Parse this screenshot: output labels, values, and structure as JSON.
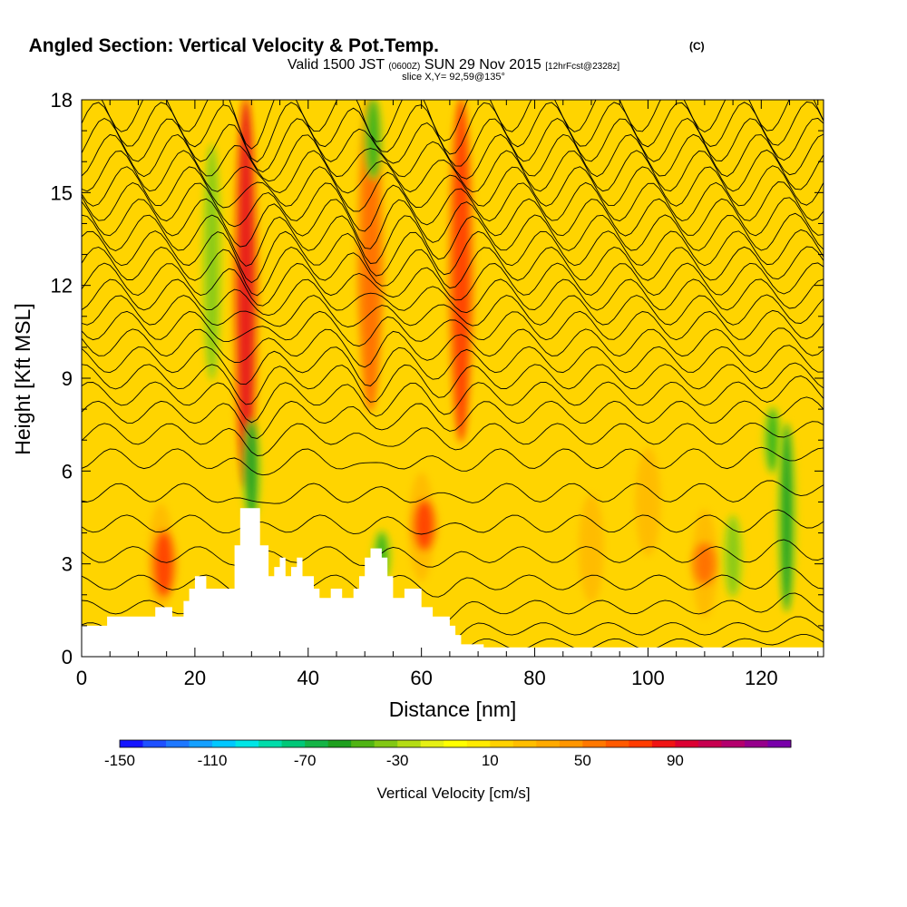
{
  "chart_data": {
    "type": "contour",
    "title": "Angled Section: Vertical Velocity & Pot.Temp.",
    "title_suffix": "(C)",
    "subtitle_parts": [
      "Valid 1500 JST",
      "(0600Z)",
      "SUN 29 Nov 2015",
      "[12hrFcst@2328z]"
    ],
    "slice_text": "slice X,Y= 92,59@135°",
    "xlabel": "Distance [nm]",
    "ylabel": "Height [Kft MSL]",
    "xlim": [
      0,
      131
    ],
    "ylim": [
      0,
      18
    ],
    "x_ticks": [
      "0",
      "20",
      "40",
      "60",
      "80",
      "100",
      "120"
    ],
    "y_ticks": [
      "0",
      "3",
      "6",
      "9",
      "12",
      "15",
      "18"
    ],
    "colorbar": {
      "label": "Vertical Velocity [cm/s]",
      "tick_labels": [
        "-150",
        "-110",
        "-70",
        "-30",
        "10",
        "50",
        "90"
      ],
      "colors": [
        "#1414ff",
        "#1e50ff",
        "#1e78ff",
        "#14a0ff",
        "#00c8ff",
        "#00e6e6",
        "#00dcaa",
        "#00c878",
        "#14b446",
        "#1ea01e",
        "#50b414",
        "#82c814",
        "#b4dc14",
        "#e6f014",
        "#ffff00",
        "#ffeb00",
        "#ffd200",
        "#ffbe00",
        "#ffaa00",
        "#ff9600",
        "#ff7800",
        "#ff5a00",
        "#ff3c00",
        "#f01414",
        "#dc0032",
        "#c80050",
        "#b4006e",
        "#96008c",
        "#7800aa"
      ]
    },
    "terrain_profile": [
      [
        0,
        1
      ],
      [
        4.5,
        1
      ],
      [
        4.5,
        1.3
      ],
      [
        13,
        1.3
      ],
      [
        13,
        1.6
      ],
      [
        16,
        1.6
      ],
      [
        16,
        1.3
      ],
      [
        18,
        1.3
      ],
      [
        18,
        1.8
      ],
      [
        19,
        1.8
      ],
      [
        19,
        2.2
      ],
      [
        20,
        2.2
      ],
      [
        20,
        2.6
      ],
      [
        22,
        2.6
      ],
      [
        22,
        2.2
      ],
      [
        27,
        2.2
      ],
      [
        27,
        3.6
      ],
      [
        28,
        3.6
      ],
      [
        28,
        4.8
      ],
      [
        31.5,
        4.8
      ],
      [
        31.5,
        3.6
      ],
      [
        33,
        3.6
      ],
      [
        33,
        2.6
      ],
      [
        34,
        2.6
      ],
      [
        34,
        2.9
      ],
      [
        35,
        2.9
      ],
      [
        35,
        3.2
      ],
      [
        36,
        3.2
      ],
      [
        36,
        2.6
      ],
      [
        37,
        2.6
      ],
      [
        37,
        2.9
      ],
      [
        38,
        2.9
      ],
      [
        38,
        3.2
      ],
      [
        39,
        3.2
      ],
      [
        39,
        2.6
      ],
      [
        41,
        2.6
      ],
      [
        41,
        2.2
      ],
      [
        42,
        2.2
      ],
      [
        42,
        1.9
      ],
      [
        44,
        1.9
      ],
      [
        44,
        2.2
      ],
      [
        46,
        2.2
      ],
      [
        46,
        1.9
      ],
      [
        48,
        1.9
      ],
      [
        48,
        2.2
      ],
      [
        49,
        2.2
      ],
      [
        49,
        2.6
      ],
      [
        50,
        2.6
      ],
      [
        50,
        3.2
      ],
      [
        51,
        3.2
      ],
      [
        51,
        3.5
      ],
      [
        53,
        3.5
      ],
      [
        53,
        3.2
      ],
      [
        54,
        3.2
      ],
      [
        54,
        2.6
      ],
      [
        55,
        2.6
      ],
      [
        55,
        1.9
      ],
      [
        57,
        1.9
      ],
      [
        57,
        2.2
      ],
      [
        60,
        2.2
      ],
      [
        60,
        1.6
      ],
      [
        62,
        1.6
      ],
      [
        62,
        1.3
      ],
      [
        65,
        1.3
      ],
      [
        65,
        1
      ],
      [
        66,
        1
      ],
      [
        66,
        0.7
      ],
      [
        67,
        0.7
      ],
      [
        67,
        0.4
      ],
      [
        71,
        0.4
      ],
      [
        71,
        0.3
      ],
      [
        131,
        0.3
      ]
    ],
    "vertical_velocity_features": [
      {
        "type": "updraft",
        "x": 29,
        "ytop": 18,
        "ybot": 5.5,
        "intensity": 90
      },
      {
        "type": "updraft",
        "x": 14.5,
        "ytop": 4,
        "ybot": 2,
        "intensity": 60
      },
      {
        "type": "updraft",
        "x": 51,
        "ytop": 18,
        "ybot": 8,
        "intensity": 50
      },
      {
        "type": "updraft",
        "x": 60.5,
        "ytop": 5,
        "ybot": 3.5,
        "intensity": 70
      },
      {
        "type": "updraft",
        "x": 67,
        "ytop": 18,
        "ybot": 7,
        "intensity": 75
      },
      {
        "type": "updraft",
        "x": 110,
        "ytop": 3.6,
        "ybot": 2.4,
        "intensity": 50
      },
      {
        "type": "downdraft",
        "x": 23,
        "ytop": 16.5,
        "ybot": 9,
        "intensity": -40
      },
      {
        "type": "downdraft",
        "x": 30,
        "ytop": 7.6,
        "ybot": 4.4,
        "intensity": -80
      },
      {
        "type": "downdraft",
        "x": 51.5,
        "ytop": 18,
        "ybot": 15.5,
        "intensity": -60
      },
      {
        "type": "downdraft",
        "x": 53,
        "ytop": 4,
        "ybot": 2.5,
        "intensity": -60
      },
      {
        "type": "downdraft",
        "x": 122,
        "ytop": 8,
        "ybot": 6,
        "intensity": -60
      },
      {
        "type": "downdraft",
        "x": 124.5,
        "ytop": 7.5,
        "ybot": 1.5,
        "intensity": -70
      },
      {
        "type": "downdraft",
        "x": 115,
        "ytop": 4.5,
        "ybot": 2,
        "intensity": -40
      }
    ],
    "isentrope_levels_approx": [
      0.4,
      0.9,
      1.6,
      2.4,
      3.3,
      4.3,
      5.3,
      6.4,
      7.2,
      7.9,
      8.5,
      9.05,
      9.6,
      10.15,
      10.7,
      11.2,
      11.7,
      12.2,
      12.7,
      13.2,
      13.7,
      14.2,
      14.7,
      15.2,
      15.7,
      16.2,
      16.7,
      17.2,
      17.7
    ]
  }
}
